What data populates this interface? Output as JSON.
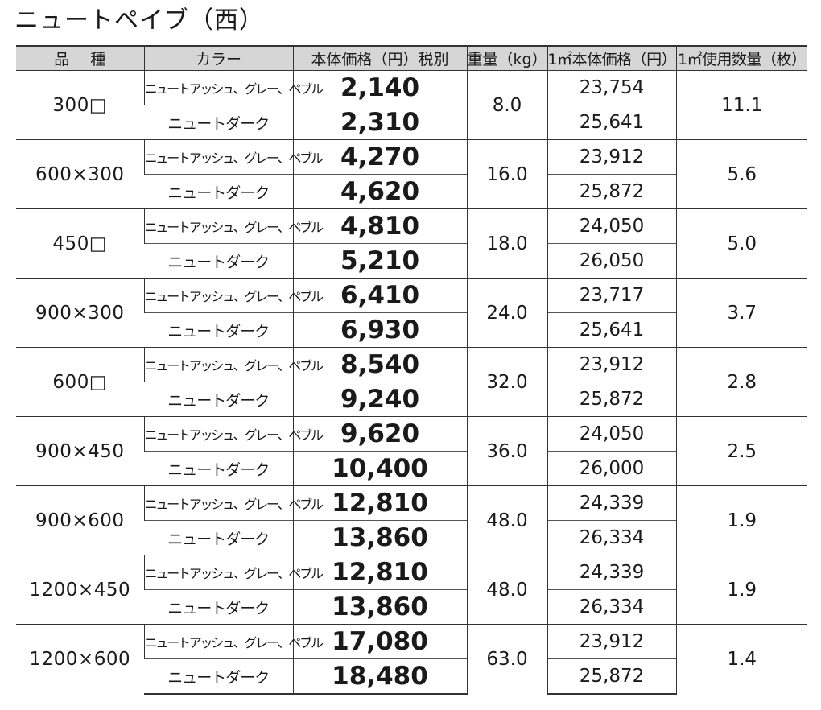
{
  "title": "ニュートペイブ（西）",
  "headers": {
    "name": "品種",
    "color": "カラー",
    "price": "本体価格（円）税別",
    "weight": "重量（kg）",
    "price_per_m2": "1㎡本体価格（円）",
    "units_per_m2": "1㎡使用数量（枚）"
  },
  "rows": [
    {
      "name": "300□",
      "weight": "8.0",
      "units_per_m2": "11.1",
      "variants": [
        {
          "color": "ニュートアッシュ、グレー、ペブル",
          "price": "2,140",
          "price_per_m2": "23,754"
        },
        {
          "color": "ニュートダーク",
          "price": "2,310",
          "price_per_m2": "25,641"
        }
      ]
    },
    {
      "name": "600×300",
      "weight": "16.0",
      "units_per_m2": "5.6",
      "variants": [
        {
          "color": "ニュートアッシュ、グレー、ペブル",
          "price": "4,270",
          "price_per_m2": "23,912"
        },
        {
          "color": "ニュートダーク",
          "price": "4,620",
          "price_per_m2": "25,872"
        }
      ]
    },
    {
      "name": "450□",
      "weight": "18.0",
      "units_per_m2": "5.0",
      "variants": [
        {
          "color": "ニュートアッシュ、グレー、ペブル",
          "price": "4,810",
          "price_per_m2": "24,050"
        },
        {
          "color": "ニュートダーク",
          "price": "5,210",
          "price_per_m2": "26,050"
        }
      ]
    },
    {
      "name": "900×300",
      "weight": "24.0",
      "units_per_m2": "3.7",
      "variants": [
        {
          "color": "ニュートアッシュ、グレー、ペブル",
          "price": "6,410",
          "price_per_m2": "23,717"
        },
        {
          "color": "ニュートダーク",
          "price": "6,930",
          "price_per_m2": "25,641"
        }
      ]
    },
    {
      "name": "600□",
      "weight": "32.0",
      "units_per_m2": "2.8",
      "variants": [
        {
          "color": "ニュートアッシュ、グレー、ペブル",
          "price": "8,540",
          "price_per_m2": "23,912"
        },
        {
          "color": "ニュートダーク",
          "price": "9,240",
          "price_per_m2": "25,872"
        }
      ]
    },
    {
      "name": "900×450",
      "weight": "36.0",
      "units_per_m2": "2.5",
      "variants": [
        {
          "color": "ニュートアッシュ、グレー、ペブル",
          "price": "9,620",
          "price_per_m2": "24,050"
        },
        {
          "color": "ニュートダーク",
          "price": "10,400",
          "price_per_m2": "26,000"
        }
      ]
    },
    {
      "name": "900×600",
      "weight": "48.0",
      "units_per_m2": "1.9",
      "variants": [
        {
          "color": "ニュートアッシュ、グレー、ペブル",
          "price": "12,810",
          "price_per_m2": "24,339"
        },
        {
          "color": "ニュートダーク",
          "price": "13,860",
          "price_per_m2": "26,334"
        }
      ]
    },
    {
      "name": "1200×450",
      "weight": "48.0",
      "units_per_m2": "1.9",
      "variants": [
        {
          "color": "ニュートアッシュ、グレー、ペブル",
          "price": "12,810",
          "price_per_m2": "24,339"
        },
        {
          "color": "ニュートダーク",
          "price": "13,860",
          "price_per_m2": "26,334"
        }
      ]
    },
    {
      "name": "1200×600",
      "weight": "63.0",
      "units_per_m2": "1.4",
      "variants": [
        {
          "color": "ニュートアッシュ、グレー、ペブル",
          "price": "17,080",
          "price_per_m2": "23,912"
        },
        {
          "color": "ニュートダーク",
          "price": "18,480",
          "price_per_m2": "25,872"
        }
      ]
    }
  ]
}
